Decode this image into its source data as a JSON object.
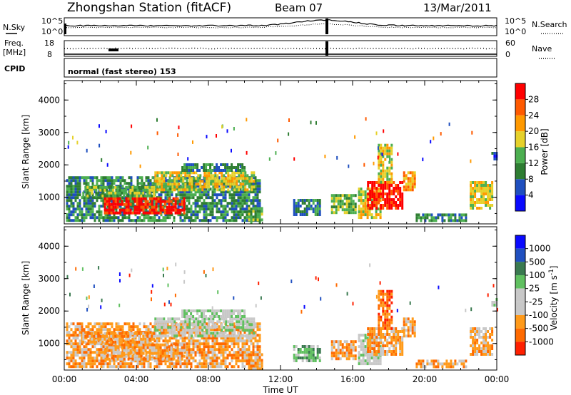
{
  "header": {
    "title": "Zhongshan Station (fitACF)",
    "beam": "Beam 07",
    "date": "13/Mar/2011"
  },
  "strip_labels": {
    "nsky": "N.Sky",
    "nsky_scale_top": "10^5",
    "nsky_scale_bottom": "10^0",
    "nsearch": "N.Search",
    "nsearch_scale_top": "10^5",
    "nsearch_scale_bottom": "10^0",
    "freq_line1": "Freq.",
    "freq_line2": "[MHz]",
    "freq_top": "18",
    "freq_bottom": "8",
    "nave": "Nave",
    "nave_top": "60",
    "nave_bottom": "0",
    "cpid": "CPID",
    "cpid_value": "normal (fast stereo) 153"
  },
  "colors": {
    "power_scale": [
      "#0a0aff",
      "#1f4fbf",
      "#2e7d32",
      "#4caf50",
      "#e6d12a",
      "#ff9900",
      "#ff5a00",
      "#ff0000"
    ],
    "velocity_scale": [
      "#0a0aff",
      "#2050c0",
      "#3a7a50",
      "#60c060",
      "#c8c8c8",
      "#c8c8c8",
      "#ff9a1a",
      "#ff6a00",
      "#ff2000"
    ]
  },
  "chart_data": [
    {
      "type": "heatmap",
      "panel": "power",
      "ylabel": "Slant Range [km]",
      "xlim": [
        "00:00",
        "24:00"
      ],
      "ylim": [
        180,
        4600
      ],
      "y_ticks": [
        "1000",
        "2000",
        "3000",
        "4000"
      ],
      "colorbar": {
        "label": "Power [dB]",
        "ticks": [
          "4",
          "8",
          "12",
          "16",
          "20",
          "24",
          "28"
        ],
        "range": [
          0,
          32
        ]
      },
      "regions": [
        {
          "t0": 0.1,
          "t1": 10.8,
          "r0": 320,
          "r1": 1650,
          "level": 2
        },
        {
          "t0": 2.2,
          "t1": 6.6,
          "r0": 500,
          "r1": 1000,
          "level": 7
        },
        {
          "t0": 5.0,
          "t1": 10.5,
          "r0": 1250,
          "r1": 1800,
          "level": 4
        },
        {
          "t0": 6.5,
          "t1": 10.0,
          "r0": 1800,
          "r1": 2050,
          "level": 2
        },
        {
          "t0": 1.0,
          "t1": 5.0,
          "r0": 1050,
          "r1": 1350,
          "level": 3
        },
        {
          "t0": 10.2,
          "t1": 11.0,
          "r0": 250,
          "r1": 700,
          "level": 3
        },
        {
          "t0": 12.7,
          "t1": 14.2,
          "r0": 450,
          "r1": 950,
          "level": 2
        },
        {
          "t0": 14.8,
          "t1": 16.2,
          "r0": 500,
          "r1": 1100,
          "level": 3
        },
        {
          "t0": 16.3,
          "t1": 17.6,
          "r0": 400,
          "r1": 1300,
          "level": 4
        },
        {
          "t0": 16.8,
          "t1": 18.8,
          "r0": 700,
          "r1": 1500,
          "level": 7
        },
        {
          "t0": 17.4,
          "t1": 18.2,
          "r0": 1500,
          "r1": 2650,
          "level": 4
        },
        {
          "t0": 18.8,
          "t1": 19.4,
          "r0": 1200,
          "r1": 1800,
          "level": 5
        },
        {
          "t0": 19.5,
          "t1": 22.3,
          "r0": 250,
          "r1": 500,
          "level": 2
        },
        {
          "t0": 22.5,
          "t1": 23.8,
          "r0": 700,
          "r1": 1500,
          "level": 4
        },
        {
          "t0": 23.7,
          "t1": 24.0,
          "r0": 2200,
          "r1": 2400,
          "level": 1
        }
      ]
    },
    {
      "type": "heatmap",
      "panel": "velocity",
      "xlabel": "Time UT",
      "ylabel": "Slant Range [km]",
      "xlim": [
        "00:00",
        "24:00"
      ],
      "ylim": [
        180,
        4600
      ],
      "x_ticks": [
        "00:00",
        "04:00",
        "08:00",
        "12:00",
        "16:00",
        "20:00",
        "00:00"
      ],
      "y_ticks": [
        "1000",
        "2000",
        "3000",
        "4000"
      ],
      "colorbar": {
        "label": "Velocity [m s^-1]",
        "ticks": [
          "1000",
          "500",
          "100",
          "25",
          "-25",
          "-100",
          "-500",
          "-1000"
        ]
      },
      "regions": [
        {
          "t0": 0.1,
          "t1": 10.8,
          "r0": 320,
          "r1": 1650,
          "level": 6
        },
        {
          "t0": 2.2,
          "t1": 6.6,
          "r0": 500,
          "r1": 1000,
          "level": 6
        },
        {
          "t0": 5.0,
          "t1": 10.5,
          "r0": 1250,
          "r1": 1800,
          "level": 4
        },
        {
          "t0": 6.5,
          "t1": 10.0,
          "r0": 1800,
          "r1": 2050,
          "level": 4
        },
        {
          "t0": 1.0,
          "t1": 5.0,
          "r0": 1050,
          "r1": 1350,
          "level": 6
        },
        {
          "t0": 10.2,
          "t1": 11.0,
          "r0": 250,
          "r1": 700,
          "level": 6
        },
        {
          "t0": 12.7,
          "t1": 14.2,
          "r0": 450,
          "r1": 950,
          "level": 3
        },
        {
          "t0": 14.8,
          "t1": 16.2,
          "r0": 500,
          "r1": 1100,
          "level": 6
        },
        {
          "t0": 16.3,
          "t1": 17.6,
          "r0": 400,
          "r1": 1300,
          "level": 4
        },
        {
          "t0": 16.8,
          "t1": 18.8,
          "r0": 700,
          "r1": 1500,
          "level": 6
        },
        {
          "t0": 17.4,
          "t1": 18.2,
          "r0": 1500,
          "r1": 2650,
          "level": 7
        },
        {
          "t0": 18.8,
          "t1": 19.4,
          "r0": 1200,
          "r1": 1800,
          "level": 6
        },
        {
          "t0": 19.5,
          "t1": 22.3,
          "r0": 250,
          "r1": 500,
          "level": 6
        },
        {
          "t0": 22.5,
          "t1": 23.8,
          "r0": 700,
          "r1": 1500,
          "level": 6
        },
        {
          "t0": 23.7,
          "t1": 24.0,
          "r0": 2200,
          "r1": 2400,
          "level": 4
        }
      ]
    }
  ]
}
